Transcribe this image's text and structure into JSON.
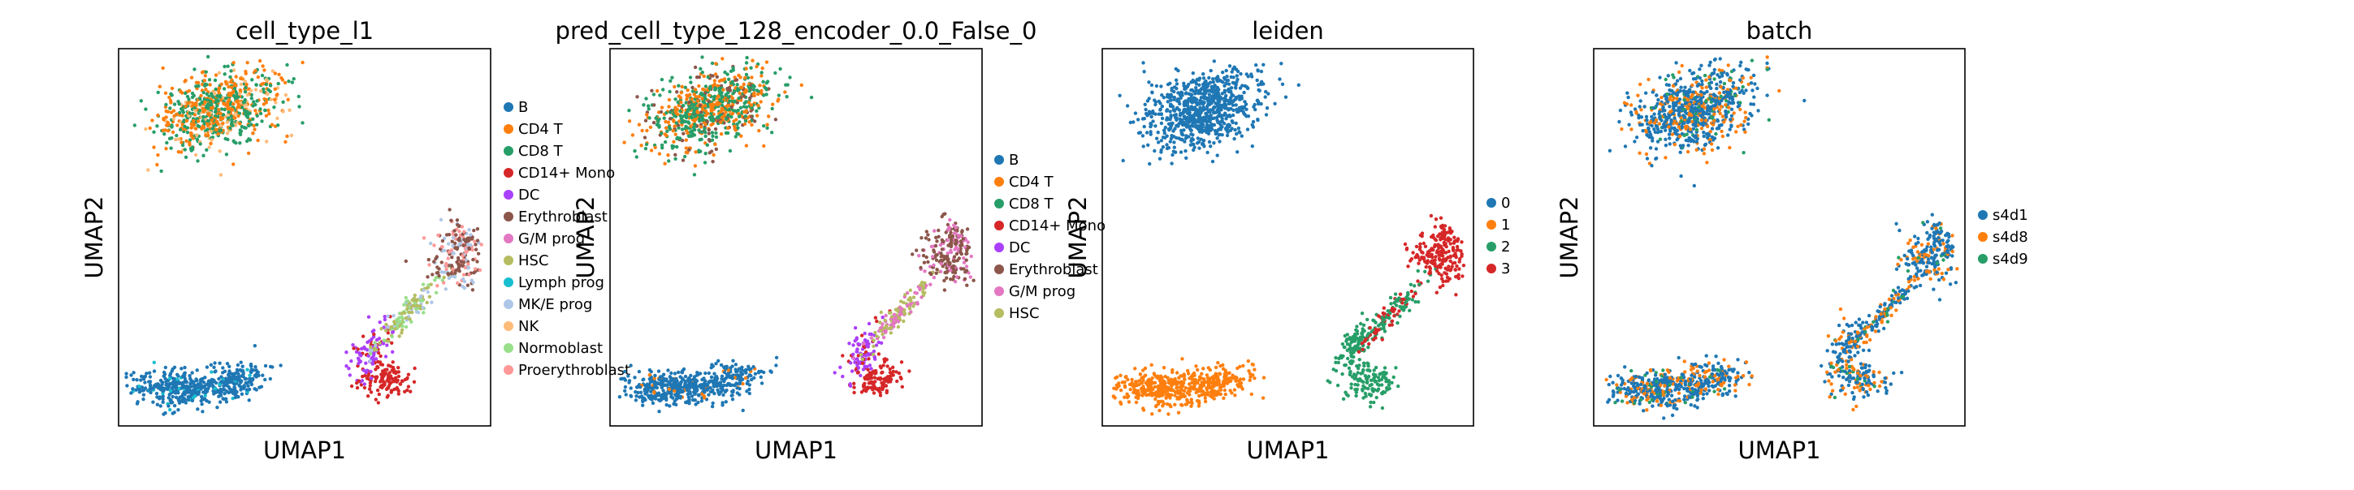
{
  "chart_data": [
    {
      "type": "scatter",
      "title": "cell_type_l1",
      "xlabel": "UMAP1",
      "ylabel": "UMAP2",
      "legend_position": "right",
      "categories": [
        "B",
        "CD4 T",
        "CD8 T",
        "CD14+ Mono",
        "DC",
        "Erythroblast",
        "G/M prog",
        "HSC",
        "Lymph prog",
        "MK/E prog",
        "NK",
        "Normoblast",
        "Proerythroblast"
      ],
      "colors": [
        "#1f77b4",
        "#ff7f0e",
        "#279e68",
        "#d62728",
        "#aa40fc",
        "#8c564b",
        "#e377c2",
        "#b5bd61",
        "#17becf",
        "#aec7e8",
        "#ffbb78",
        "#98df8a",
        "#ff9896"
      ]
    },
    {
      "type": "scatter",
      "title": "pred_cell_type_128_encoder_0.0_False_0",
      "xlabel": "UMAP1",
      "ylabel": "UMAP2",
      "legend_position": "right",
      "categories": [
        "B",
        "CD4 T",
        "CD8 T",
        "CD14+ Mono",
        "DC",
        "Erythroblast",
        "G/M prog",
        "HSC"
      ],
      "colors": [
        "#1f77b4",
        "#ff7f0e",
        "#279e68",
        "#d62728",
        "#aa40fc",
        "#8c564b",
        "#e377c2",
        "#b5bd61"
      ]
    },
    {
      "type": "scatter",
      "title": "leiden",
      "xlabel": "UMAP1",
      "ylabel": "UMAP2",
      "legend_position": "right",
      "categories": [
        "0",
        "1",
        "2",
        "3"
      ],
      "colors": [
        "#1f77b4",
        "#ff7f0e",
        "#279e68",
        "#d62728"
      ]
    },
    {
      "type": "scatter",
      "title": "batch",
      "xlabel": "UMAP1",
      "ylabel": "UMAP2",
      "legend_position": "right",
      "categories": [
        "s4d1",
        "s4d8",
        "s4d9"
      ],
      "colors": [
        "#1f77b4",
        "#ff7f0e",
        "#279e68"
      ]
    }
  ]
}
